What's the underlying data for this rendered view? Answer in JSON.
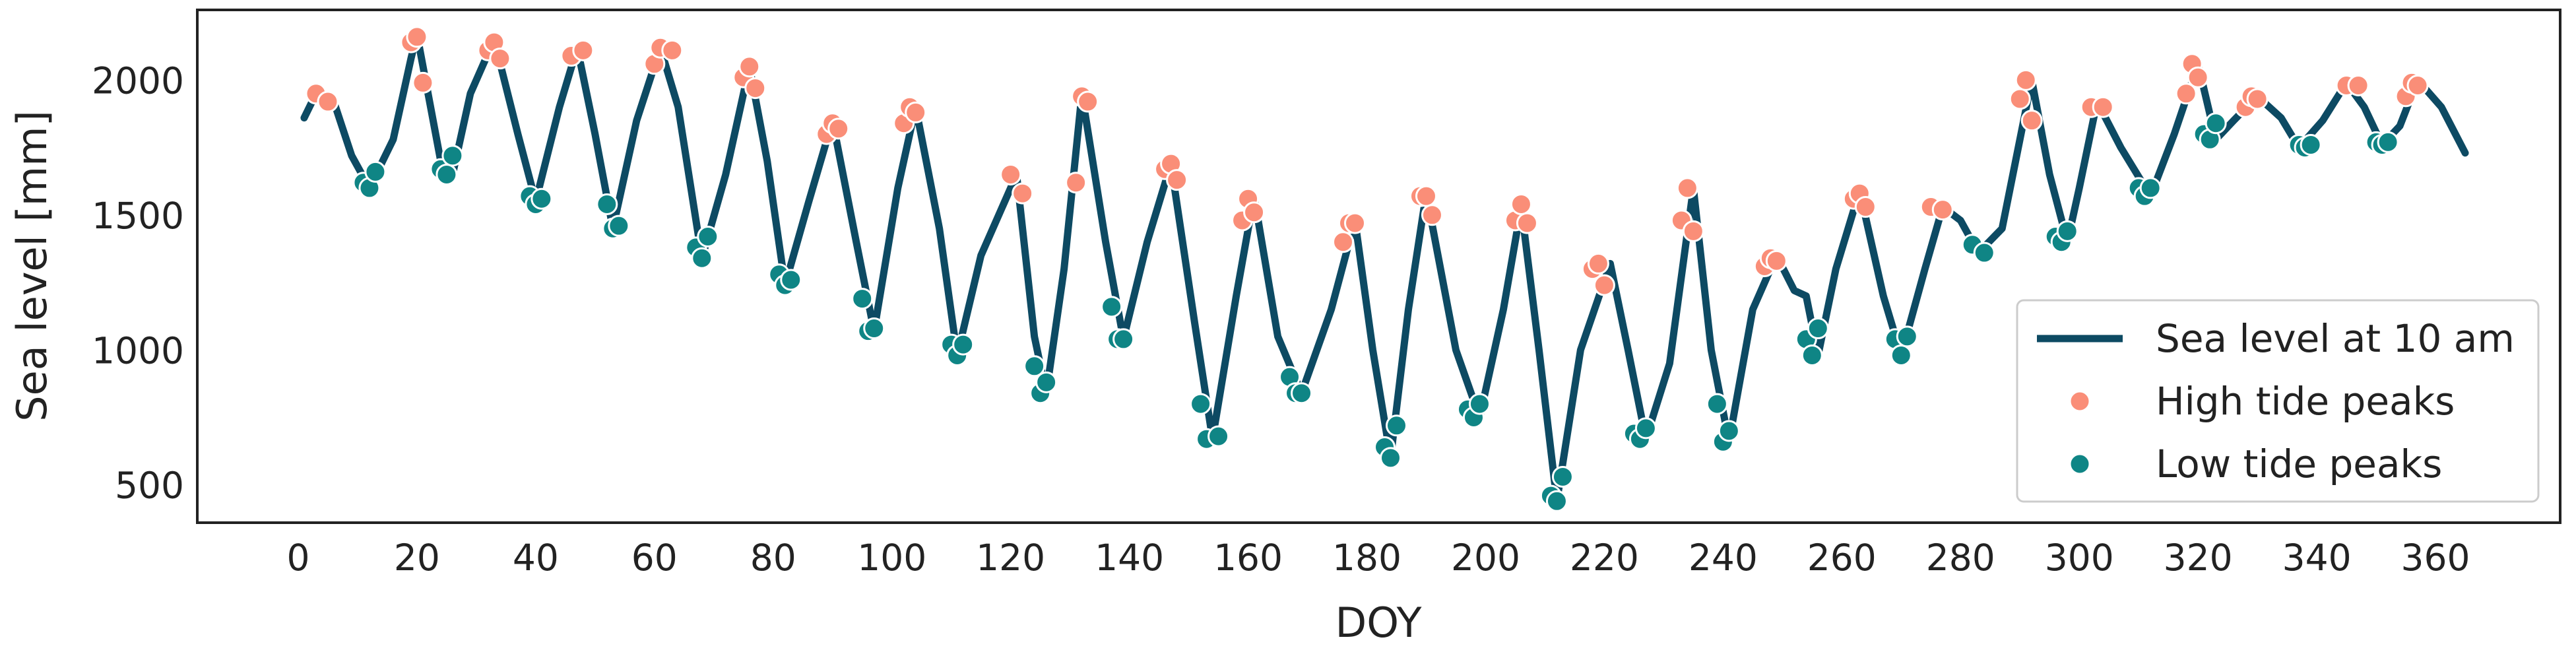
{
  "chart_data": {
    "type": "line",
    "x_label": "DOY",
    "y_label": "Sea level [mm]",
    "xlim": [
      -17,
      381
    ],
    "ylim": [
      360,
      2260
    ],
    "xticks": [
      0,
      20,
      40,
      60,
      80,
      100,
      120,
      140,
      160,
      180,
      200,
      220,
      240,
      260,
      280,
      300,
      320,
      340,
      360
    ],
    "yticks": [
      500,
      1000,
      1500,
      2000
    ],
    "grid": false,
    "legend": "lower right",
    "series": [
      {
        "name": "Sea level at 10 am",
        "kind": "line",
        "color": "#0d4a63",
        "x": [
          1,
          3,
          6,
          9,
          12,
          16,
          19,
          20,
          24,
          26,
          29,
          33,
          37,
          40,
          44,
          47,
          50,
          53,
          57,
          61,
          64,
          68,
          72,
          76,
          79,
          82,
          86,
          90,
          94,
          97,
          101,
          104,
          108,
          111,
          115,
          121,
          124,
          126,
          129,
          132,
          136,
          139,
          143,
          147,
          151,
          154,
          158,
          161,
          165,
          169,
          174,
          178,
          181,
          184,
          187,
          190,
          195,
          199,
          203,
          206,
          209,
          212,
          216,
          221,
          224,
          227,
          231,
          235,
          238,
          241,
          245,
          249,
          252,
          254,
          256,
          259,
          263,
          267,
          270,
          274,
          277,
          280,
          283,
          287,
          292,
          295,
          298,
          300,
          303,
          307,
          312,
          316,
          320,
          323,
          326,
          330,
          334,
          337,
          341,
          345,
          348,
          351,
          354,
          357,
          361,
          365
        ],
        "values": [
          1860,
          1950,
          1920,
          1720,
          1600,
          1780,
          2080,
          2170,
          1700,
          1650,
          1950,
          2150,
          1800,
          1550,
          1900,
          2120,
          1800,
          1450,
          1850,
          2120,
          1900,
          1340,
          1650,
          2050,
          1700,
          1240,
          1550,
          1850,
          1400,
          1070,
          1600,
          1900,
          1450,
          980,
          1350,
          1650,
          1050,
          840,
          1300,
          1950,
          1400,
          1040,
          1400,
          1690,
          1100,
          670,
          1200,
          1570,
          1050,
          840,
          1150,
          1480,
          1000,
          600,
          1150,
          1580,
          1000,
          750,
          1150,
          1530,
          1000,
          440,
          1000,
          1320,
          1000,
          670,
          950,
          1600,
          1000,
          660,
          1150,
          1350,
          1220,
          1200,
          980,
          1300,
          1590,
          1200,
          980,
          1300,
          1530,
          1480,
          1360,
          1450,
          2000,
          1650,
          1400,
          1600,
          1920,
          1750,
          1570,
          1800,
          2060,
          1780,
          1850,
          1940,
          1860,
          1750,
          1850,
          1990,
          1900,
          1760,
          1830,
          2000,
          1900,
          1730
        ]
      },
      {
        "name": "High tide peaks",
        "kind": "scatter",
        "color": "#fa8e78",
        "x": [
          3,
          5,
          19,
          20,
          21,
          32,
          33,
          34,
          46,
          48,
          60,
          61,
          63,
          75,
          76,
          77,
          89,
          90,
          91,
          102,
          103,
          104,
          120,
          122,
          131,
          132,
          133,
          146,
          147,
          148,
          159,
          160,
          161,
          176,
          177,
          178,
          189,
          190,
          191,
          205,
          206,
          207,
          218,
          219,
          220,
          233,
          234,
          235,
          247,
          248,
          249,
          262,
          263,
          264,
          275,
          277,
          290,
          291,
          292,
          302,
          304,
          318,
          319,
          320,
          328,
          329,
          330,
          345,
          347,
          355,
          356,
          357
        ],
        "values": [
          1950,
          1920,
          2140,
          2160,
          1990,
          2110,
          2140,
          2080,
          2090,
          2110,
          2060,
          2120,
          2110,
          2010,
          2050,
          1970,
          1800,
          1840,
          1820,
          1840,
          1900,
          1880,
          1650,
          1580,
          1620,
          1940,
          1920,
          1670,
          1690,
          1630,
          1480,
          1560,
          1510,
          1400,
          1470,
          1470,
          1570,
          1570,
          1500,
          1480,
          1540,
          1470,
          1300,
          1320,
          1240,
          1480,
          1600,
          1440,
          1310,
          1340,
          1330,
          1560,
          1580,
          1530,
          1530,
          1520,
          1930,
          2000,
          1850,
          1900,
          1900,
          1950,
          2060,
          2010,
          1900,
          1940,
          1930,
          1980,
          1980,
          1940,
          1990,
          1980
        ]
      },
      {
        "name": "Low tide peaks",
        "kind": "scatter",
        "color": "#0f8585",
        "x": [
          11,
          12,
          13,
          24,
          25,
          26,
          39,
          40,
          41,
          52,
          53,
          54,
          67,
          68,
          69,
          81,
          82,
          83,
          95,
          96,
          97,
          110,
          111,
          112,
          124,
          125,
          126,
          137,
          138,
          139,
          152,
          153,
          155,
          167,
          168,
          169,
          183,
          184,
          185,
          197,
          198,
          199,
          211,
          212,
          213,
          225,
          226,
          227,
          239,
          240,
          241,
          254,
          255,
          256,
          269,
          270,
          271,
          282,
          284,
          296,
          297,
          298,
          310,
          311,
          312,
          321,
          322,
          323,
          337,
          338,
          339,
          350,
          351,
          352
        ],
        "values": [
          1620,
          1600,
          1660,
          1670,
          1650,
          1720,
          1570,
          1540,
          1560,
          1540,
          1450,
          1460,
          1380,
          1340,
          1420,
          1280,
          1240,
          1260,
          1190,
          1070,
          1080,
          1020,
          980,
          1020,
          940,
          840,
          880,
          1160,
          1040,
          1040,
          800,
          670,
          680,
          900,
          840,
          840,
          640,
          600,
          720,
          780,
          750,
          800,
          460,
          440,
          530,
          690,
          670,
          710,
          800,
          660,
          700,
          1040,
          980,
          1080,
          1040,
          980,
          1050,
          1390,
          1360,
          1420,
          1400,
          1440,
          1600,
          1570,
          1600,
          1800,
          1780,
          1840,
          1760,
          1750,
          1760,
          1770,
          1760,
          1770
        ]
      }
    ]
  }
}
